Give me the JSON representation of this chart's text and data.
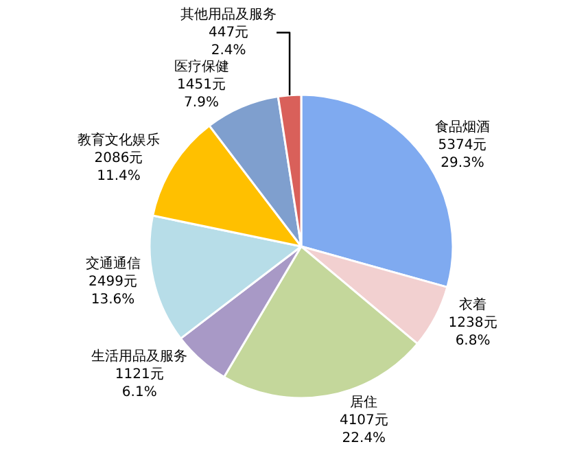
{
  "chart_data": {
    "type": "pie",
    "categories": [
      "食品烟酒",
      "衣着",
      "居住",
      "生活用品及服务",
      "交通通信",
      "教育文化娱乐",
      "医疗保健",
      "其他用品及服务"
    ],
    "values": [
      5374,
      1238,
      4107,
      1121,
      2499,
      2086,
      1451,
      447
    ],
    "value_labels": [
      "5374元\n29.3%",
      "1238元\n6.8%",
      "4107元\n22.4%",
      "1121元\n6.1%",
      "2499元\n13.6%",
      "2086元\n11.4%",
      "1451元\n7.9%",
      "447元\n2.4%"
    ],
    "colors": [
      "#7faaf0",
      "#f2d0d0",
      "#c4d79b",
      "#a899c6",
      "#b7dde8",
      "#ffc000",
      "#7f9fce",
      "#d9605a"
    ],
    "legend": false
  }
}
